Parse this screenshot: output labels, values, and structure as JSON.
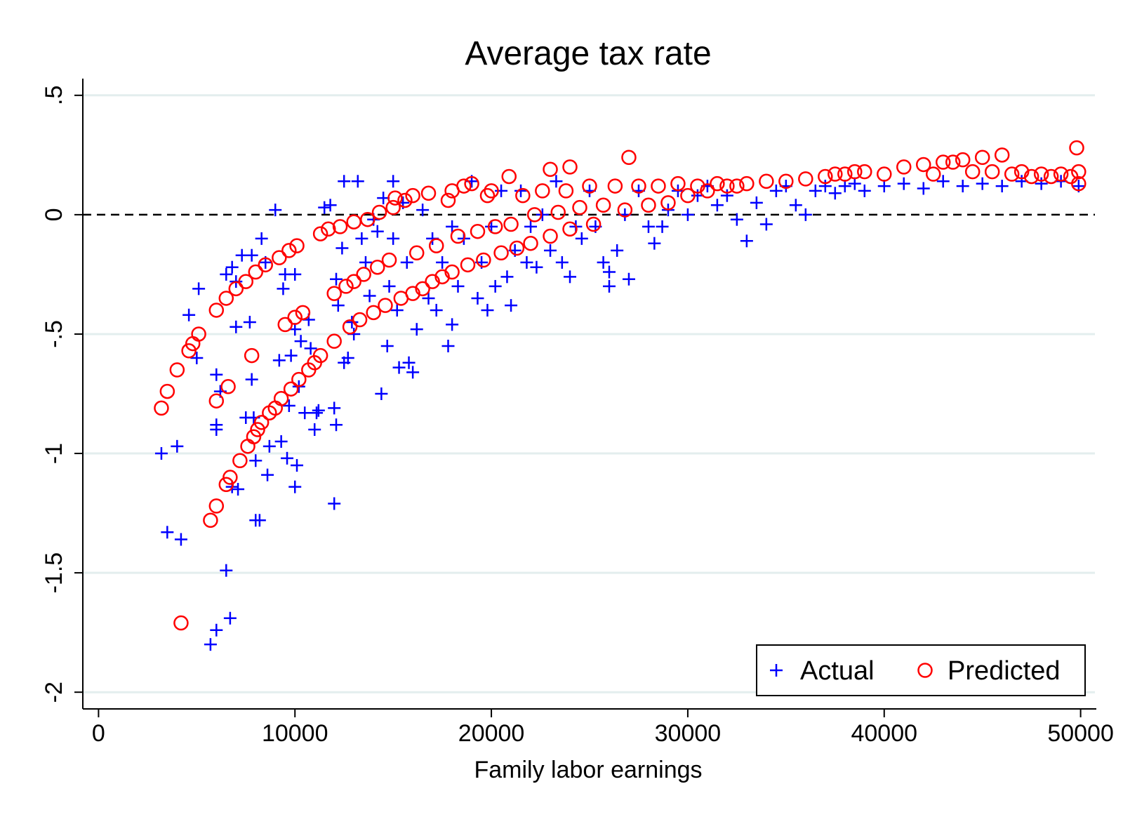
{
  "chart_data": {
    "type": "scatter",
    "title": "Average tax rate",
    "xlabel": "Family labor earnings",
    "ylabel": "",
    "xlim": [
      -800,
      50800
    ],
    "ylim": [
      -2.07,
      0.57
    ],
    "xticks": [
      0,
      10000,
      20000,
      30000,
      40000,
      50000
    ],
    "xtick_labels": [
      "0",
      "10000",
      "20000",
      "30000",
      "40000",
      "50000"
    ],
    "yticks": [
      0.5,
      0,
      -0.5,
      -1,
      -1.5,
      -2
    ],
    "ytick_labels": [
      ".5",
      "0",
      "-.5",
      "-1",
      "-1.5",
      "-2"
    ],
    "grid": "horizontal",
    "reference_line": {
      "y": 0,
      "style": "dashed"
    },
    "legend": {
      "placement": "bottom-right"
    },
    "colors": {
      "actual": "#0000ff",
      "predicted": "#ff0000",
      "grid": "#e3eeee"
    },
    "series": [
      {
        "name": "Actual",
        "marker": "plus",
        "points": [
          [
            3200,
            -1.0
          ],
          [
            3500,
            -1.33
          ],
          [
            4000,
            -0.97
          ],
          [
            4200,
            -1.36
          ],
          [
            4600,
            -0.42
          ],
          [
            5000,
            -0.6
          ],
          [
            5100,
            -0.31
          ],
          [
            5700,
            -1.8
          ],
          [
            6000,
            -1.74
          ],
          [
            6000,
            -0.67
          ],
          [
            6000,
            -0.88
          ],
          [
            6000,
            -0.9
          ],
          [
            6200,
            -0.74
          ],
          [
            6500,
            -1.49
          ],
          [
            6500,
            -0.25
          ],
          [
            6700,
            -1.69
          ],
          [
            6800,
            -0.22
          ],
          [
            6800,
            -1.14
          ],
          [
            7000,
            -0.47
          ],
          [
            7000,
            -0.28
          ],
          [
            7100,
            -1.15
          ],
          [
            7300,
            -0.17
          ],
          [
            7500,
            -0.85
          ],
          [
            7700,
            -0.45
          ],
          [
            7800,
            -0.17
          ],
          [
            7800,
            -0.69
          ],
          [
            7900,
            -0.85
          ],
          [
            8000,
            -1.03
          ],
          [
            8000,
            -1.28
          ],
          [
            8200,
            -1.28
          ],
          [
            8300,
            -0.1
          ],
          [
            8500,
            -0.2
          ],
          [
            8600,
            -1.09
          ],
          [
            8700,
            -0.97
          ],
          [
            9000,
            0.02
          ],
          [
            9200,
            -0.61
          ],
          [
            9300,
            -0.95
          ],
          [
            9400,
            -0.31
          ],
          [
            9500,
            -0.25
          ],
          [
            9600,
            -1.02
          ],
          [
            9700,
            -0.8
          ],
          [
            9800,
            -0.59
          ],
          [
            10000,
            -0.48
          ],
          [
            10000,
            -1.14
          ],
          [
            10000,
            -0.25
          ],
          [
            10100,
            -1.05
          ],
          [
            10200,
            -0.72
          ],
          [
            10300,
            -0.53
          ],
          [
            10500,
            -0.83
          ],
          [
            10700,
            -0.44
          ],
          [
            10800,
            -0.56
          ],
          [
            11000,
            -0.9
          ],
          [
            11100,
            -0.83
          ],
          [
            11200,
            -0.82
          ],
          [
            11500,
            0.03
          ],
          [
            11800,
            0.04
          ],
          [
            12000,
            -1.21
          ],
          [
            12000,
            -0.81
          ],
          [
            12100,
            -0.88
          ],
          [
            12100,
            -0.27
          ],
          [
            12200,
            -0.38
          ],
          [
            12400,
            -0.14
          ],
          [
            12500,
            0.14
          ],
          [
            12500,
            -0.62
          ],
          [
            12700,
            -0.6
          ],
          [
            12900,
            -0.45
          ],
          [
            13000,
            -0.5
          ],
          [
            13200,
            0.14
          ],
          [
            13400,
            -0.1
          ],
          [
            13600,
            -0.2
          ],
          [
            13800,
            -0.34
          ],
          [
            14000,
            -0.02
          ],
          [
            14200,
            -0.07
          ],
          [
            14400,
            -0.75
          ],
          [
            14500,
            0.07
          ],
          [
            14700,
            -0.55
          ],
          [
            14800,
            -0.3
          ],
          [
            15000,
            0.14
          ],
          [
            15000,
            -0.1
          ],
          [
            15200,
            -0.4
          ],
          [
            15300,
            -0.64
          ],
          [
            15500,
            0.05
          ],
          [
            15700,
            -0.2
          ],
          [
            15800,
            -0.62
          ],
          [
            16000,
            -0.66
          ],
          [
            16200,
            -0.48
          ],
          [
            16500,
            0.02
          ],
          [
            16800,
            -0.35
          ],
          [
            17000,
            -0.1
          ],
          [
            17200,
            -0.4
          ],
          [
            17500,
            -0.2
          ],
          [
            17800,
            -0.55
          ],
          [
            18000,
            -0.46
          ],
          [
            18000,
            -0.05
          ],
          [
            18300,
            -0.3
          ],
          [
            18600,
            -0.1
          ],
          [
            19000,
            0.14
          ],
          [
            19300,
            -0.35
          ],
          [
            19500,
            -0.2
          ],
          [
            19800,
            -0.4
          ],
          [
            20000,
            -0.05
          ],
          [
            20200,
            -0.3
          ],
          [
            20500,
            0.1
          ],
          [
            20800,
            -0.26
          ],
          [
            21000,
            -0.38
          ],
          [
            21200,
            -0.15
          ],
          [
            21500,
            0.1
          ],
          [
            21800,
            -0.2
          ],
          [
            22000,
            -0.05
          ],
          [
            22300,
            -0.22
          ],
          [
            22600,
            0.0
          ],
          [
            23000,
            -0.15
          ],
          [
            23300,
            0.14
          ],
          [
            23600,
            -0.2
          ],
          [
            24000,
            -0.26
          ],
          [
            24300,
            -0.05
          ],
          [
            24600,
            -0.1
          ],
          [
            25000,
            0.1
          ],
          [
            25300,
            -0.05
          ],
          [
            25700,
            -0.2
          ],
          [
            26000,
            -0.3
          ],
          [
            26000,
            -0.24
          ],
          [
            26400,
            -0.15
          ],
          [
            26800,
            0.0
          ],
          [
            27000,
            -0.27
          ],
          [
            27500,
            0.1
          ],
          [
            28000,
            -0.05
          ],
          [
            28300,
            -0.12
          ],
          [
            28700,
            -0.05
          ],
          [
            29000,
            0.02
          ],
          [
            29500,
            0.1
          ],
          [
            30000,
            0.0
          ],
          [
            30500,
            0.08
          ],
          [
            31000,
            0.12
          ],
          [
            31500,
            0.04
          ],
          [
            32000,
            0.08
          ],
          [
            32500,
            -0.02
          ],
          [
            33000,
            -0.11
          ],
          [
            33500,
            0.05
          ],
          [
            34000,
            -0.04
          ],
          [
            34500,
            0.1
          ],
          [
            35000,
            0.12
          ],
          [
            35500,
            0.04
          ],
          [
            36000,
            0.0
          ],
          [
            36500,
            0.1
          ],
          [
            37000,
            0.12
          ],
          [
            37500,
            0.09
          ],
          [
            38000,
            0.12
          ],
          [
            38500,
            0.13
          ],
          [
            39000,
            0.1
          ],
          [
            40000,
            0.12
          ],
          [
            41000,
            0.13
          ],
          [
            42000,
            0.11
          ],
          [
            43000,
            0.14
          ],
          [
            44000,
            0.12
          ],
          [
            45000,
            0.13
          ],
          [
            46000,
            0.12
          ],
          [
            47000,
            0.14
          ],
          [
            48000,
            0.13
          ],
          [
            49000,
            0.14
          ],
          [
            49900,
            0.12
          ]
        ]
      },
      {
        "name": "Predicted",
        "marker": "circle",
        "points": [
          [
            3200,
            -0.81
          ],
          [
            3500,
            -0.74
          ],
          [
            4000,
            -0.65
          ],
          [
            4200,
            -1.71
          ],
          [
            4600,
            -0.57
          ],
          [
            4800,
            -0.54
          ],
          [
            5100,
            -0.5
          ],
          [
            5700,
            -1.28
          ],
          [
            6000,
            -0.4
          ],
          [
            6000,
            -0.78
          ],
          [
            6000,
            -1.22
          ],
          [
            6500,
            -0.35
          ],
          [
            6600,
            -0.72
          ],
          [
            6500,
            -1.13
          ],
          [
            6700,
            -1.1
          ],
          [
            7000,
            -0.31
          ],
          [
            7200,
            -1.03
          ],
          [
            7500,
            -0.28
          ],
          [
            7600,
            -0.97
          ],
          [
            7800,
            -0.59
          ],
          [
            7900,
            -0.93
          ],
          [
            8000,
            -0.24
          ],
          [
            8100,
            -0.9
          ],
          [
            8300,
            -0.87
          ],
          [
            8500,
            -0.21
          ],
          [
            8700,
            -0.83
          ],
          [
            9000,
            -0.81
          ],
          [
            9200,
            -0.18
          ],
          [
            9300,
            -0.77
          ],
          [
            9500,
            -0.46
          ],
          [
            9700,
            -0.15
          ],
          [
            9800,
            -0.73
          ],
          [
            10000,
            -0.43
          ],
          [
            10100,
            -0.13
          ],
          [
            10200,
            -0.69
          ],
          [
            10400,
            -0.41
          ],
          [
            10700,
            -0.65
          ],
          [
            11000,
            -0.62
          ],
          [
            11300,
            -0.59
          ],
          [
            11300,
            -0.08
          ],
          [
            11700,
            -0.06
          ],
          [
            12000,
            -0.33
          ],
          [
            12000,
            -0.53
          ],
          [
            12300,
            -0.05
          ],
          [
            12600,
            -0.3
          ],
          [
            12800,
            -0.47
          ],
          [
            13000,
            -0.28
          ],
          [
            13000,
            -0.03
          ],
          [
            13300,
            -0.44
          ],
          [
            13500,
            -0.25
          ],
          [
            13700,
            -0.02
          ],
          [
            14000,
            -0.41
          ],
          [
            14200,
            -0.22
          ],
          [
            14300,
            0.01
          ],
          [
            14600,
            -0.38
          ],
          [
            14800,
            -0.19
          ],
          [
            15000,
            0.03
          ],
          [
            15100,
            0.07
          ],
          [
            15400,
            -0.35
          ],
          [
            15600,
            0.06
          ],
          [
            16000,
            -0.33
          ],
          [
            16000,
            0.08
          ],
          [
            16200,
            -0.16
          ],
          [
            16500,
            -0.31
          ],
          [
            16800,
            0.09
          ],
          [
            17000,
            -0.28
          ],
          [
            17200,
            -0.13
          ],
          [
            17500,
            -0.26
          ],
          [
            17800,
            0.06
          ],
          [
            18000,
            -0.24
          ],
          [
            18000,
            0.1
          ],
          [
            18300,
            -0.09
          ],
          [
            18600,
            0.12
          ],
          [
            18800,
            -0.21
          ],
          [
            19000,
            0.13
          ],
          [
            19300,
            -0.07
          ],
          [
            19600,
            -0.19
          ],
          [
            19800,
            0.08
          ],
          [
            20000,
            0.1
          ],
          [
            20200,
            -0.05
          ],
          [
            20500,
            -0.16
          ],
          [
            20900,
            0.16
          ],
          [
            21000,
            -0.04
          ],
          [
            21300,
            -0.14
          ],
          [
            21600,
            0.08
          ],
          [
            22000,
            -0.12
          ],
          [
            22200,
            0.0
          ],
          [
            22600,
            0.1
          ],
          [
            23000,
            -0.09
          ],
          [
            23000,
            0.19
          ],
          [
            23400,
            0.01
          ],
          [
            23800,
            0.1
          ],
          [
            24000,
            -0.06
          ],
          [
            24000,
            0.2
          ],
          [
            24500,
            0.03
          ],
          [
            25000,
            0.12
          ],
          [
            25200,
            -0.04
          ],
          [
            25700,
            0.04
          ],
          [
            26300,
            0.12
          ],
          [
            26800,
            0.02
          ],
          [
            27000,
            0.24
          ],
          [
            27500,
            0.12
          ],
          [
            28000,
            0.04
          ],
          [
            28500,
            0.12
          ],
          [
            29000,
            0.05
          ],
          [
            29500,
            0.13
          ],
          [
            30000,
            0.08
          ],
          [
            30500,
            0.12
          ],
          [
            31000,
            0.1
          ],
          [
            31500,
            0.13
          ],
          [
            32000,
            0.12
          ],
          [
            32500,
            0.12
          ],
          [
            33000,
            0.13
          ],
          [
            34000,
            0.14
          ],
          [
            35000,
            0.14
          ],
          [
            36000,
            0.15
          ],
          [
            37000,
            0.16
          ],
          [
            37500,
            0.17
          ],
          [
            38000,
            0.17
          ],
          [
            38500,
            0.18
          ],
          [
            39000,
            0.18
          ],
          [
            40000,
            0.17
          ],
          [
            41000,
            0.2
          ],
          [
            42000,
            0.21
          ],
          [
            42500,
            0.17
          ],
          [
            43000,
            0.22
          ],
          [
            43500,
            0.22
          ],
          [
            44000,
            0.23
          ],
          [
            44500,
            0.18
          ],
          [
            45000,
            0.24
          ],
          [
            45500,
            0.18
          ],
          [
            46000,
            0.25
          ],
          [
            46500,
            0.17
          ],
          [
            47000,
            0.18
          ],
          [
            47500,
            0.16
          ],
          [
            48000,
            0.17
          ],
          [
            48500,
            0.16
          ],
          [
            49000,
            0.17
          ],
          [
            49500,
            0.16
          ],
          [
            49800,
            0.28
          ],
          [
            49900,
            0.13
          ],
          [
            49900,
            0.18
          ]
        ]
      }
    ]
  }
}
